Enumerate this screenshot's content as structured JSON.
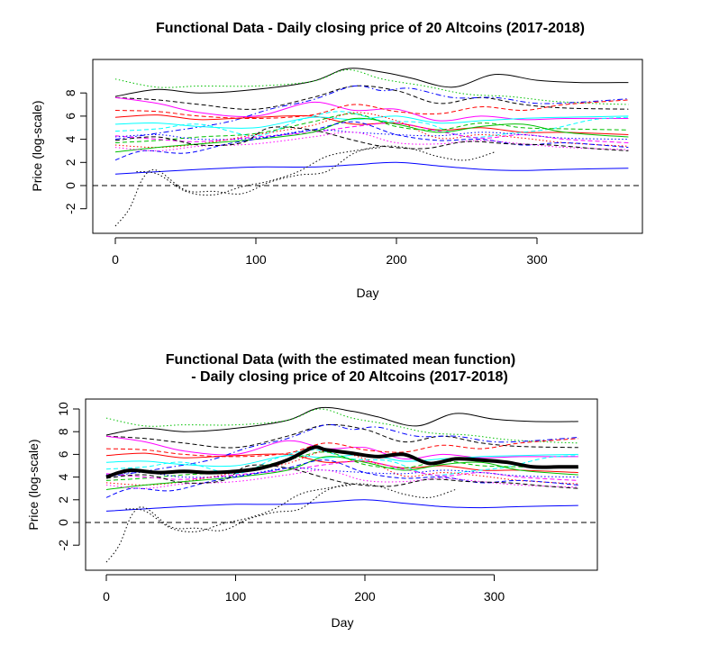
{
  "chart_data": [
    {
      "type": "line",
      "title": "Functional Data - Daily closing price of 20 Altcoins (2017-2018)",
      "xlabel": "Day",
      "ylabel": "Price (log-scale)",
      "xlim": [
        0,
        365
      ],
      "ylim": [
        -3.5,
        10.5
      ],
      "xticks": [
        "0",
        "100",
        "200",
        "300"
      ],
      "yticks": [
        "-2",
        "0",
        "2",
        "4",
        "6",
        "8"
      ],
      "reference_line": {
        "y": 0,
        "style": "dashed",
        "color": "#000000"
      },
      "grid": false,
      "legend": "none",
      "series": [
        {
          "color": "#000000",
          "dash": "solid",
          "x": [
            0,
            30,
            60,
            100,
            140,
            165,
            190,
            210,
            240,
            270,
            300,
            330,
            365
          ],
          "values": [
            7.7,
            8.3,
            8.0,
            8.3,
            9.0,
            10.1,
            9.8,
            9.3,
            8.5,
            9.6,
            9.1,
            8.9,
            8.9
          ]
        },
        {
          "color": "#00c000",
          "dash": "dot",
          "x": [
            0,
            30,
            60,
            100,
            140,
            165,
            190,
            220,
            250,
            280,
            310,
            340,
            365
          ],
          "values": [
            9.2,
            8.5,
            8.6,
            8.6,
            9.0,
            10.0,
            9.2,
            8.6,
            7.9,
            7.7,
            7.3,
            7.1,
            7.0
          ]
        },
        {
          "color": "#000000",
          "dash": "dash",
          "x": [
            0,
            30,
            60,
            100,
            140,
            170,
            200,
            230,
            260,
            290,
            320,
            365
          ],
          "values": [
            7.6,
            7.4,
            7.0,
            6.6,
            7.6,
            8.6,
            8.2,
            7.1,
            7.6,
            7.0,
            6.7,
            6.6
          ]
        },
        {
          "color": "#ff00ff",
          "dash": "solid",
          "x": [
            0,
            30,
            60,
            100,
            140,
            170,
            200,
            230,
            260,
            290,
            320,
            365
          ],
          "values": [
            7.6,
            7.1,
            6.3,
            6.0,
            7.2,
            6.5,
            6.6,
            5.6,
            6.0,
            5.7,
            5.8,
            5.8
          ]
        },
        {
          "color": "#0000ff",
          "dash": "dashdot",
          "x": [
            0,
            40,
            80,
            110,
            140,
            170,
            190,
            210,
            240,
            270,
            300,
            330,
            365
          ],
          "values": [
            4.0,
            4.7,
            5.5,
            6.6,
            7.4,
            8.6,
            8.2,
            8.4,
            7.6,
            7.6,
            7.1,
            7.2,
            7.5
          ]
        },
        {
          "color": "#ff0000",
          "dash": "dash",
          "x": [
            0,
            30,
            60,
            100,
            140,
            170,
            200,
            230,
            260,
            290,
            320,
            365
          ],
          "values": [
            6.5,
            6.4,
            6.0,
            5.8,
            6.1,
            7.0,
            6.4,
            6.2,
            6.8,
            6.5,
            7.0,
            7.4
          ]
        },
        {
          "color": "#ff0000",
          "dash": "solid",
          "x": [
            0,
            30,
            60,
            100,
            140,
            170,
            200,
            230,
            260,
            290,
            320,
            365
          ],
          "values": [
            5.9,
            6.1,
            5.7,
            5.9,
            6.0,
            5.3,
            5.4,
            4.8,
            5.0,
            4.6,
            4.6,
            4.4
          ]
        },
        {
          "color": "#00ffff",
          "dash": "solid",
          "x": [
            0,
            30,
            60,
            100,
            140,
            170,
            200,
            230,
            260,
            290,
            320,
            365
          ],
          "values": [
            5.3,
            5.4,
            5.1,
            5.0,
            5.9,
            5.7,
            6.0,
            5.4,
            5.6,
            5.8,
            5.9,
            6.0
          ]
        },
        {
          "color": "#00ffff",
          "dash": "dash",
          "x": [
            0,
            30,
            60,
            100,
            130,
            160,
            190,
            220,
            250,
            280,
            310,
            340,
            365
          ],
          "values": [
            4.7,
            4.9,
            5.3,
            4.3,
            5.6,
            6.4,
            5.6,
            5.4,
            4.2,
            4.5,
            4.9,
            5.7,
            5.9
          ]
        },
        {
          "color": "#00c000",
          "dash": "dash",
          "x": [
            0,
            30,
            60,
            100,
            140,
            170,
            200,
            230,
            260,
            290,
            320,
            365
          ],
          "values": [
            3.7,
            3.9,
            4.2,
            4.5,
            5.5,
            6.2,
            5.1,
            4.8,
            5.4,
            5.0,
            4.9,
            4.8
          ]
        },
        {
          "color": "#ff00ff",
          "dash": "dash",
          "x": [
            0,
            30,
            60,
            100,
            140,
            170,
            200,
            230,
            260,
            290,
            320,
            365
          ],
          "values": [
            4.3,
            4.0,
            3.8,
            4.2,
            4.6,
            5.1,
            5.4,
            4.7,
            4.1,
            4.4,
            4.0,
            3.7
          ]
        },
        {
          "color": "#0000ff",
          "dash": "dot",
          "x": [
            0,
            30,
            60,
            100,
            140,
            170,
            200,
            230,
            260,
            290,
            320,
            365
          ],
          "values": [
            4.2,
            4.4,
            4.0,
            4.1,
            4.8,
            4.6,
            4.4,
            4.3,
            4.6,
            4.4,
            4.1,
            4.0
          ]
        },
        {
          "color": "#ff0000",
          "dash": "dot",
          "x": [
            0,
            30,
            60,
            100,
            140,
            170,
            200,
            230,
            260,
            290,
            320,
            365
          ],
          "values": [
            3.5,
            3.3,
            3.6,
            4.4,
            5.2,
            6.3,
            5.6,
            4.1,
            4.4,
            4.1,
            3.7,
            3.4
          ]
        },
        {
          "color": "#00c000",
          "dash": "solid",
          "x": [
            0,
            30,
            60,
            100,
            140,
            170,
            200,
            230,
            260,
            290,
            320,
            365
          ],
          "values": [
            2.9,
            3.3,
            3.6,
            4.0,
            4.6,
            5.8,
            5.3,
            4.6,
            5.1,
            5.3,
            4.6,
            4.2
          ]
        },
        {
          "color": "#0000ff",
          "dash": "dash",
          "x": [
            0,
            20,
            50,
            80,
            110,
            140,
            170,
            200,
            230,
            260,
            290,
            320,
            365
          ],
          "values": [
            2.2,
            3.0,
            2.8,
            3.6,
            4.2,
            4.8,
            5.5,
            4.4,
            3.9,
            4.0,
            3.5,
            3.7,
            3.3
          ]
        },
        {
          "color": "#ff00ff",
          "dash": "dot",
          "x": [
            0,
            30,
            60,
            100,
            140,
            170,
            200,
            230,
            260,
            290,
            320,
            365
          ],
          "values": [
            3.3,
            3.0,
            3.4,
            3.6,
            4.2,
            4.6,
            3.7,
            3.6,
            3.9,
            3.6,
            3.3,
            3.1
          ]
        },
        {
          "color": "#000000",
          "dash": "dash",
          "x": [
            0,
            30,
            60,
            90,
            110,
            140,
            170,
            190,
            220,
            250,
            280,
            310,
            340,
            365
          ],
          "values": [
            3.9,
            4.2,
            3.5,
            3.7,
            5.0,
            4.8,
            3.9,
            3.4,
            3.2,
            3.8,
            3.6,
            3.5,
            3.2,
            3.0
          ]
        },
        {
          "color": "#0000ff",
          "dash": "solid",
          "x": [
            0,
            30,
            60,
            100,
            140,
            170,
            200,
            230,
            260,
            290,
            320,
            365
          ],
          "values": [
            1.0,
            1.2,
            1.4,
            1.6,
            1.6,
            1.8,
            2.0,
            1.7,
            1.4,
            1.3,
            1.4,
            1.5
          ]
        },
        {
          "color": "#000000",
          "dash": "dot",
          "x": [
            0,
            10,
            20,
            30,
            50,
            70,
            90,
            110,
            130,
            150,
            170,
            190,
            210,
            230,
            250,
            270
          ],
          "values": [
            -3.5,
            -2.0,
            0.7,
            1.3,
            -0.4,
            -0.5,
            -0.7,
            0.3,
            0.9,
            1.2,
            2.8,
            3.4,
            3.2,
            2.5,
            2.2,
            2.9
          ]
        },
        {
          "color": "#000000",
          "dash": "dot",
          "x": [
            15,
            30,
            50,
            70,
            90,
            110,
            130,
            150,
            170,
            190
          ],
          "values": [
            1.2,
            1.0,
            -0.5,
            -0.8,
            -0.1,
            0.4,
            1.2,
            2.5,
            3.0,
            3.3
          ]
        }
      ]
    },
    {
      "type": "line",
      "title": "Functional Data (with the estimated mean function)",
      "subtitle": "- Daily closing price of 20 Altcoins (2017-2018)",
      "xlabel": "Day",
      "ylabel": "Price (log-scale)",
      "xlim": [
        0,
        365
      ],
      "ylim": [
        -3.5,
        10.5
      ],
      "xticks": [
        "0",
        "100",
        "200",
        "300"
      ],
      "yticks": [
        "-2",
        "0",
        "2",
        "4",
        "6",
        "8",
        "10"
      ],
      "reference_line": {
        "y": 0,
        "style": "dashed",
        "color": "#000000"
      },
      "grid": false,
      "legend": "none",
      "mean_function": {
        "color": "#000000",
        "x": [
          0,
          10,
          20,
          40,
          60,
          80,
          100,
          120,
          140,
          160,
          170,
          190,
          210,
          230,
          250,
          270,
          290,
          310,
          330,
          350,
          365
        ],
        "values": [
          4.0,
          4.4,
          4.6,
          4.4,
          4.5,
          4.4,
          4.5,
          4.8,
          5.5,
          6.6,
          6.4,
          6.1,
          5.8,
          6.0,
          5.2,
          5.6,
          5.5,
          5.3,
          4.9,
          4.9,
          4.9
        ]
      },
      "series_same_as_first_chart": true
    }
  ]
}
